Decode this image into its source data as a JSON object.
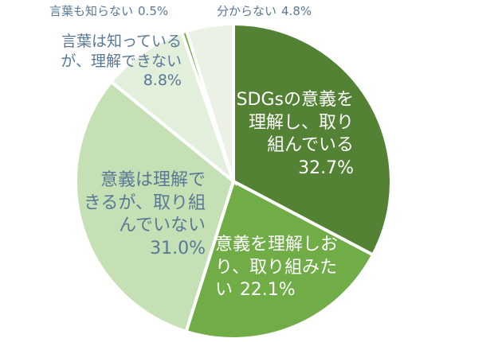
{
  "chart_data": {
    "type": "pie",
    "categories": [
      "SDGsの意義を理解し、取り組んでいる",
      "意義を理解しおり、取り組みたい",
      "意義は理解できるが、取り組んでいない",
      "言葉は知っているが、理解できない",
      "言葉も知らない",
      "分からない"
    ],
    "values": [
      32.7,
      22.1,
      31.0,
      8.8,
      0.5,
      4.8
    ],
    "value_labels": [
      "32.7%",
      "22.1%",
      "31.0%",
      "8.8%",
      "0.5%",
      "4.8%"
    ],
    "colors": [
      "#548235",
      "#70ad47",
      "#c5e0b4",
      "#e2efda",
      "#70ad47",
      "#ebf1e4"
    ]
  }
}
